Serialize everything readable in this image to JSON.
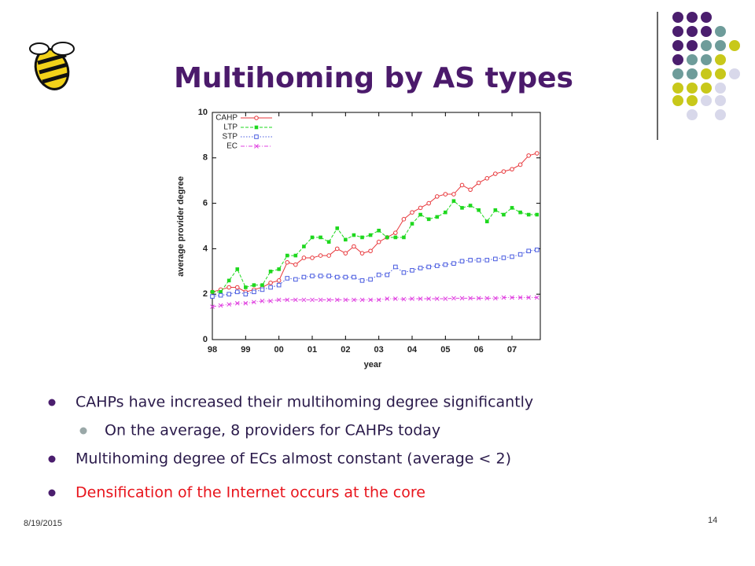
{
  "slide": {
    "title": "Multihoming by AS types",
    "date": "8/19/2015",
    "page": "14",
    "bullets": [
      {
        "text": "CAHPs have increased their multihoming degree significantly",
        "level": 1,
        "color": "#2a1a4a"
      },
      {
        "text": "On the average,  8 providers for CAHPs today",
        "level": 2,
        "color": "#2a1a4a"
      },
      {
        "text": "Multihoming degree of ECs almost constant (average < 2)",
        "level": 1,
        "color": "#2a1a4a"
      },
      {
        "text": "Densification of the Internet occurs at the core",
        "level": 1,
        "color": "#e8141c"
      }
    ]
  },
  "chart_data": {
    "type": "line",
    "xlabel": "year",
    "ylabel": "average provider degree",
    "x": [
      1998,
      1998.25,
      1998.5,
      1998.75,
      1999,
      1999.25,
      1999.5,
      1999.75,
      2000,
      2000.25,
      2000.5,
      2000.75,
      2001,
      2001.25,
      2001.5,
      2001.75,
      2002,
      2002.25,
      2002.5,
      2002.75,
      2003,
      2003.25,
      2003.5,
      2003.75,
      2004,
      2004.25,
      2004.5,
      2004.75,
      2005,
      2005.25,
      2005.5,
      2005.75,
      2006,
      2006.25,
      2006.5,
      2006.75,
      2007,
      2007.25,
      2007.5,
      2007.75
    ],
    "xlim": [
      1998,
      2007.85
    ],
    "xticks": [
      {
        "value": 1998,
        "label": "98"
      },
      {
        "value": 1999,
        "label": "99"
      },
      {
        "value": 2000,
        "label": "00"
      },
      {
        "value": 2001,
        "label": "01"
      },
      {
        "value": 2002,
        "label": "02"
      },
      {
        "value": 2003,
        "label": "03"
      },
      {
        "value": 2004,
        "label": "04"
      },
      {
        "value": 2005,
        "label": "05"
      },
      {
        "value": 2006,
        "label": "06"
      },
      {
        "value": 2007,
        "label": "07"
      }
    ],
    "ylim": [
      0,
      10
    ],
    "yticks": [
      0,
      2,
      4,
      6,
      8,
      10
    ],
    "legend": "top-left",
    "series": [
      {
        "name": "CAHP",
        "color": "#e8383c",
        "marker": "circle",
        "line_style": "solid",
        "values": [
          2.1,
          2.2,
          2.3,
          2.3,
          2.1,
          2.2,
          2.3,
          2.5,
          2.6,
          3.4,
          3.3,
          3.6,
          3.6,
          3.7,
          3.7,
          4.0,
          3.8,
          4.1,
          3.8,
          3.9,
          4.3,
          4.5,
          4.7,
          5.3,
          5.6,
          5.8,
          6.0,
          6.3,
          6.4,
          6.4,
          6.8,
          6.6,
          6.9,
          7.1,
          7.3,
          7.4,
          7.5,
          7.7,
          8.1,
          8.2
        ]
      },
      {
        "name": "LTP",
        "color": "#1ed81e",
        "marker": "square-filled",
        "line_style": "dashed",
        "values": [
          2.1,
          2.1,
          2.6,
          3.1,
          2.3,
          2.4,
          2.4,
          3.0,
          3.1,
          3.7,
          3.7,
          4.1,
          4.5,
          4.5,
          4.3,
          4.9,
          4.4,
          4.6,
          4.5,
          4.6,
          4.8,
          4.5,
          4.5,
          4.5,
          5.1,
          5.5,
          5.3,
          5.4,
          5.6,
          6.1,
          5.8,
          5.9,
          5.7,
          5.2,
          5.7,
          5.5,
          5.8,
          5.6,
          5.5,
          5.5
        ]
      },
      {
        "name": "STP",
        "color": "#4a5ce0",
        "marker": "square",
        "line_style": "dotted",
        "values": [
          1.9,
          1.95,
          2.0,
          2.1,
          2.0,
          2.1,
          2.2,
          2.3,
          2.4,
          2.7,
          2.65,
          2.75,
          2.8,
          2.8,
          2.8,
          2.75,
          2.75,
          2.75,
          2.6,
          2.65,
          2.85,
          2.85,
          3.2,
          2.95,
          3.05,
          3.15,
          3.2,
          3.25,
          3.3,
          3.35,
          3.45,
          3.5,
          3.5,
          3.5,
          3.55,
          3.6,
          3.65,
          3.75,
          3.9,
          3.95
        ]
      },
      {
        "name": "EC",
        "color": "#e040e0",
        "marker": "x",
        "line_style": "dashdot",
        "values": [
          1.45,
          1.5,
          1.55,
          1.6,
          1.6,
          1.65,
          1.7,
          1.7,
          1.75,
          1.75,
          1.75,
          1.75,
          1.75,
          1.75,
          1.75,
          1.75,
          1.75,
          1.75,
          1.75,
          1.75,
          1.75,
          1.8,
          1.8,
          1.78,
          1.8,
          1.8,
          1.8,
          1.8,
          1.8,
          1.82,
          1.82,
          1.82,
          1.82,
          1.82,
          1.82,
          1.85,
          1.85,
          1.85,
          1.85,
          1.85
        ]
      }
    ]
  }
}
